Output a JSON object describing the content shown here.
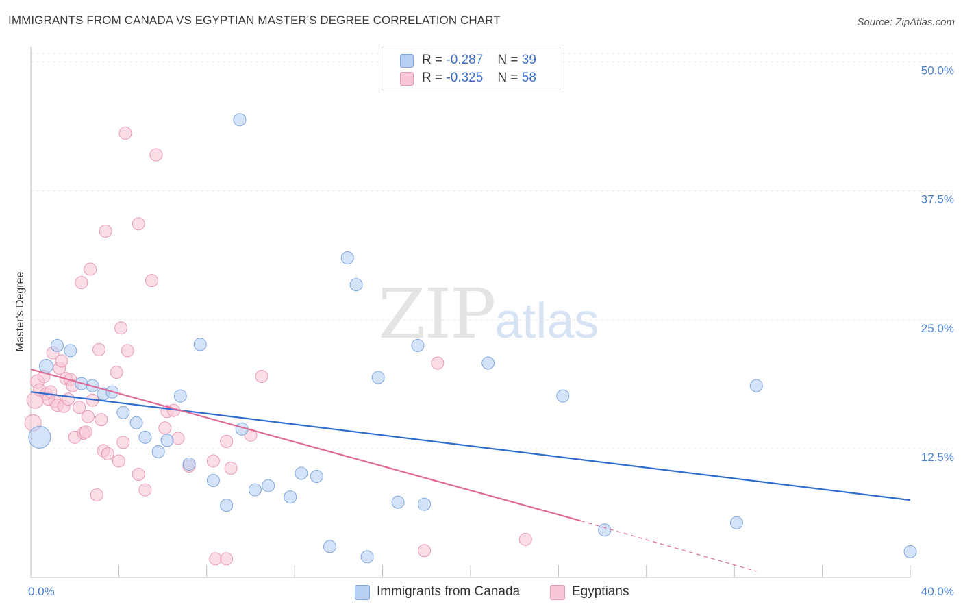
{
  "title": "IMMIGRANTS FROM CANADA VS EGYPTIAN MASTER'S DEGREE CORRELATION CHART",
  "source": "Source: ZipAtlas.com",
  "watermark": {
    "zip": "ZIP",
    "atlas": "atlas"
  },
  "legend": {
    "r_label": "R =",
    "n_label": "N =",
    "rows": [
      {
        "r": "-0.287",
        "n": "39",
        "color": "#b8d0f3",
        "border": "#7ea6e0"
      },
      {
        "r": "-0.325",
        "n": "58",
        "color": "#f8c6d6",
        "border": "#e999b4"
      }
    ]
  },
  "bottom_legend": [
    {
      "label": "Immigrants from Canada",
      "color": "#b8d0f3",
      "border": "#7ea6e0"
    },
    {
      "label": "Egyptians",
      "color": "#f8c6d6",
      "border": "#e999b4"
    }
  ],
  "chart_data": {
    "type": "scatter",
    "ylabel": "Master's Degree",
    "xlim": [
      0,
      40
    ],
    "ylim": [
      0,
      51.5
    ],
    "x_tick_labels": [
      "0.0%",
      "40.0%"
    ],
    "y_ticks": [
      12.5,
      25.0,
      37.5,
      50.0
    ],
    "y_tick_labels": [
      "12.5%",
      "25.0%",
      "37.5%",
      "50.0%"
    ],
    "series": [
      {
        "name": "Immigrants from Canada",
        "color": "#7ea6e0",
        "fill": "#b8d0f3",
        "trend_color": "#2e6ccf",
        "trend": {
          "x": [
            0,
            40
          ],
          "y": [
            18.0,
            7.5
          ]
        },
        "points": [
          [
            0.4,
            13.6,
            16
          ],
          [
            0.7,
            20.5,
            10
          ],
          [
            1.2,
            22.5,
            9
          ],
          [
            1.8,
            22.0,
            9
          ],
          [
            2.3,
            18.8,
            9
          ],
          [
            2.8,
            18.6,
            9
          ],
          [
            3.3,
            17.8,
            9
          ],
          [
            3.7,
            18.0,
            9
          ],
          [
            4.2,
            16.0,
            9
          ],
          [
            4.8,
            15.0,
            9
          ],
          [
            5.2,
            13.6,
            9
          ],
          [
            5.8,
            12.2,
            9
          ],
          [
            6.2,
            13.3,
            9
          ],
          [
            6.8,
            17.6,
            9
          ],
          [
            7.2,
            11.0,
            9
          ],
          [
            7.7,
            22.6,
            9
          ],
          [
            8.3,
            9.4,
            9
          ],
          [
            8.9,
            7.0,
            9
          ],
          [
            9.5,
            44.4,
            9
          ],
          [
            9.6,
            14.4,
            9
          ],
          [
            10.2,
            8.5,
            9
          ],
          [
            10.8,
            8.9,
            9
          ],
          [
            11.8,
            7.8,
            9
          ],
          [
            12.3,
            10.1,
            9
          ],
          [
            13.0,
            9.8,
            9
          ],
          [
            13.6,
            3.0,
            9
          ],
          [
            14.4,
            31.0,
            9
          ],
          [
            14.8,
            28.4,
            9
          ],
          [
            15.3,
            2.0,
            9
          ],
          [
            15.8,
            19.4,
            9
          ],
          [
            16.7,
            7.3,
            9
          ],
          [
            17.6,
            22.5,
            9
          ],
          [
            17.9,
            7.1,
            9
          ],
          [
            20.8,
            20.8,
            9
          ],
          [
            24.2,
            17.6,
            9
          ],
          [
            26.1,
            4.6,
            9
          ],
          [
            32.1,
            5.3,
            9
          ],
          [
            33.0,
            18.6,
            9
          ],
          [
            40.0,
            2.5,
            9
          ]
        ]
      },
      {
        "name": "Egyptians",
        "color": "#e999b4",
        "fill": "#f8c6d6",
        "trend_color": "#de6b95",
        "trend": {
          "x": [
            0,
            25
          ],
          "y": [
            20.2,
            5.5
          ]
        },
        "trend_dashed": {
          "x": [
            25,
            33
          ],
          "y": [
            5.5,
            0.6
          ]
        },
        "points": [
          [
            0.1,
            15.0,
            12
          ],
          [
            0.2,
            17.2,
            12
          ],
          [
            0.3,
            19.0,
            10
          ],
          [
            0.4,
            18.2,
            9
          ],
          [
            0.6,
            19.5,
            9
          ],
          [
            0.7,
            17.8,
            9
          ],
          [
            0.8,
            17.3,
            9
          ],
          [
            0.9,
            18.0,
            9
          ],
          [
            1.0,
            21.8,
            9
          ],
          [
            1.1,
            17.1,
            9
          ],
          [
            1.2,
            16.7,
            9
          ],
          [
            1.3,
            20.3,
            9
          ],
          [
            1.4,
            21.0,
            9
          ],
          [
            1.5,
            16.6,
            9
          ],
          [
            1.6,
            19.3,
            9
          ],
          [
            1.7,
            17.3,
            9
          ],
          [
            1.8,
            19.2,
            9
          ],
          [
            1.9,
            18.6,
            9
          ],
          [
            2.0,
            13.6,
            9
          ],
          [
            2.2,
            16.5,
            9
          ],
          [
            2.3,
            28.6,
            9
          ],
          [
            2.4,
            14.0,
            9
          ],
          [
            2.5,
            14.1,
            9
          ],
          [
            2.6,
            15.6,
            9
          ],
          [
            2.7,
            29.9,
            9
          ],
          [
            2.8,
            17.2,
            9
          ],
          [
            3.0,
            8.0,
            9
          ],
          [
            3.1,
            22.1,
            9
          ],
          [
            3.2,
            15.3,
            9
          ],
          [
            3.3,
            12.3,
            9
          ],
          [
            3.4,
            33.6,
            9
          ],
          [
            3.5,
            12.0,
            9
          ],
          [
            3.9,
            19.9,
            9
          ],
          [
            4.0,
            11.3,
            9
          ],
          [
            4.1,
            24.2,
            9
          ],
          [
            4.2,
            13.1,
            9
          ],
          [
            4.3,
            43.1,
            9
          ],
          [
            4.4,
            22.0,
            9
          ],
          [
            4.9,
            10.0,
            9
          ],
          [
            4.9,
            34.3,
            9
          ],
          [
            5.2,
            8.5,
            9
          ],
          [
            5.5,
            28.8,
            9
          ],
          [
            5.7,
            41.0,
            9
          ],
          [
            6.1,
            14.5,
            9
          ],
          [
            6.2,
            16.1,
            9
          ],
          [
            6.5,
            16.2,
            9
          ],
          [
            6.7,
            13.5,
            9
          ],
          [
            7.2,
            10.8,
            9
          ],
          [
            8.3,
            11.3,
            9
          ],
          [
            8.4,
            1.8,
            9
          ],
          [
            8.9,
            13.2,
            9
          ],
          [
            8.9,
            1.8,
            9
          ],
          [
            9.1,
            10.6,
            9
          ],
          [
            10.0,
            13.8,
            9
          ],
          [
            10.5,
            19.5,
            9
          ],
          [
            17.9,
            2.6,
            9
          ],
          [
            18.5,
            20.8,
            9
          ],
          [
            22.5,
            3.7,
            9
          ]
        ]
      }
    ]
  }
}
